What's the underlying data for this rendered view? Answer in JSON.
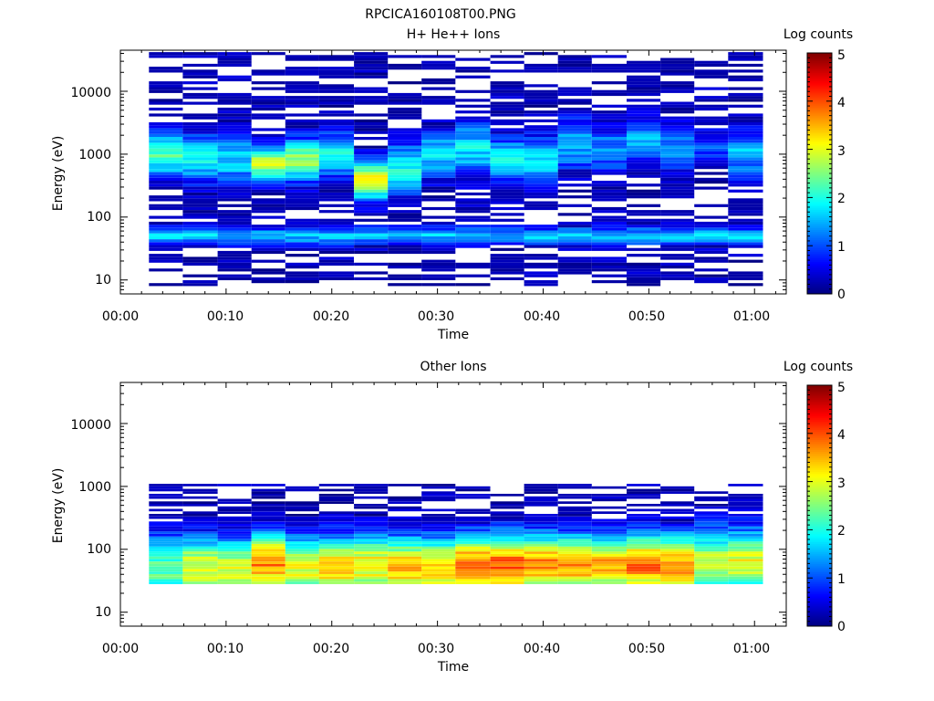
{
  "figure_title": "RPCICA160108T00.PNG",
  "chart_data": [
    {
      "type": "heatmap",
      "title": "H+ He++ Ions",
      "xlabel": "Time",
      "ylabel": "Energy (eV)",
      "colorbar_label": "Log counts",
      "x_ticks": [
        "00:00",
        "00:10",
        "00:20",
        "00:30",
        "00:40",
        "00:50",
        "01:00"
      ],
      "y_ticks": [
        "10",
        "100",
        "1000",
        "10000"
      ],
      "y_scale": "log",
      "ylim": [
        6,
        45000
      ],
      "xlim_minutes": [
        0,
        63
      ],
      "colorbar_ticks": [
        "0",
        "1",
        "2",
        "3",
        "4",
        "5"
      ],
      "clim": [
        0,
        5
      ],
      "colormap": [
        "#00007f",
        "#0000ff",
        "#007fff",
        "#00ffff",
        "#7fff7f",
        "#ffff00",
        "#ff7f00",
        "#ff0000",
        "#7f0000"
      ],
      "time_bins_minutes": [
        [
          2.7,
          5.9
        ],
        [
          5.9,
          9.2
        ],
        [
          9.2,
          12.4
        ],
        [
          12.4,
          15.6
        ],
        [
          15.6,
          18.8
        ],
        [
          18.8,
          22.1
        ],
        [
          22.1,
          25.3
        ],
        [
          25.3,
          28.5
        ],
        [
          28.5,
          31.7
        ],
        [
          31.7,
          35.0
        ],
        [
          35.0,
          38.2
        ],
        [
          38.2,
          41.4
        ],
        [
          41.4,
          44.6
        ],
        [
          44.6,
          47.9
        ],
        [
          47.9,
          51.1
        ],
        [
          51.1,
          54.3
        ],
        [
          54.3,
          57.5
        ],
        [
          57.5,
          60.8
        ]
      ],
      "energy_range_eV": [
        8,
        42000
      ],
      "energy_channels": 80,
      "profiles": [
        {
          "center_eV": 1000,
          "peak": 2.4,
          "width_decades": 0.35
        },
        {
          "center_eV": 900,
          "peak": 1.9,
          "width_decades": 0.4
        },
        {
          "center_eV": 800,
          "peak": 1.6,
          "width_decades": 0.45
        },
        {
          "center_eV": 700,
          "peak": 2.8,
          "width_decades": 0.3
        },
        {
          "center_eV": 800,
          "peak": 2.6,
          "width_decades": 0.35
        },
        {
          "center_eV": 1000,
          "peak": 1.8,
          "width_decades": 0.4
        },
        {
          "center_eV": 400,
          "peak": 3.0,
          "width_decades": 0.35
        },
        {
          "center_eV": 600,
          "peak": 2.0,
          "width_decades": 0.4
        },
        {
          "center_eV": 1000,
          "peak": 1.7,
          "width_decades": 0.4
        },
        {
          "center_eV": 1200,
          "peak": 1.8,
          "width_decades": 0.45
        },
        {
          "center_eV": 800,
          "peak": 2.1,
          "width_decades": 0.35
        },
        {
          "center_eV": 800,
          "peak": 1.7,
          "width_decades": 0.4
        },
        {
          "center_eV": 1500,
          "peak": 1.5,
          "width_decades": 0.45
        },
        {
          "center_eV": 1200,
          "peak": 1.3,
          "width_decades": 0.4
        },
        {
          "center_eV": 1600,
          "peak": 1.7,
          "width_decades": 0.35
        },
        {
          "center_eV": 1200,
          "peak": 1.4,
          "width_decades": 0.4
        },
        {
          "center_eV": 1200,
          "peak": 1.0,
          "width_decades": 0.35
        },
        {
          "center_eV": 1000,
          "peak": 1.5,
          "width_decades": 0.4
        }
      ],
      "low_energy_band": {
        "center_eV": 50,
        "peak": 1.6,
        "width_decades": 0.15
      }
    },
    {
      "type": "heatmap",
      "title": "Other Ions",
      "xlabel": "Time",
      "ylabel": "Energy (eV)",
      "colorbar_label": "Log counts",
      "x_ticks": [
        "00:00",
        "00:10",
        "00:20",
        "00:30",
        "00:40",
        "00:50",
        "01:00"
      ],
      "y_ticks": [
        "10",
        "100",
        "1000",
        "10000"
      ],
      "y_scale": "log",
      "ylim": [
        6,
        45000
      ],
      "xlim_minutes": [
        0,
        63
      ],
      "colorbar_ticks": [
        "0",
        "1",
        "2",
        "3",
        "4",
        "5"
      ],
      "clim": [
        0,
        5
      ],
      "colormap": [
        "#00007f",
        "#0000ff",
        "#007fff",
        "#00ffff",
        "#7fff7f",
        "#ffff00",
        "#ff7f00",
        "#ff0000",
        "#7f0000"
      ],
      "time_bins_minutes": [
        [
          2.7,
          5.9
        ],
        [
          5.9,
          9.2
        ],
        [
          9.2,
          12.4
        ],
        [
          12.4,
          15.6
        ],
        [
          15.6,
          18.8
        ],
        [
          18.8,
          22.1
        ],
        [
          22.1,
          25.3
        ],
        [
          25.3,
          28.5
        ],
        [
          28.5,
          31.7
        ],
        [
          31.7,
          35.0
        ],
        [
          35.0,
          38.2
        ],
        [
          38.2,
          41.4
        ],
        [
          41.4,
          44.6
        ],
        [
          44.6,
          47.9
        ],
        [
          47.9,
          51.1
        ],
        [
          51.1,
          54.3
        ],
        [
          54.3,
          57.5
        ],
        [
          57.5,
          60.8
        ]
      ],
      "energy_range_eV": [
        28,
        1100
      ],
      "energy_channels": 40,
      "profiles": [
        {
          "center_eV": 50,
          "peak": 2.4,
          "width_decades": 0.55
        },
        {
          "center_eV": 50,
          "peak": 3.1,
          "width_decades": 0.5
        },
        {
          "center_eV": 50,
          "peak": 3.0,
          "width_decades": 0.5
        },
        {
          "center_eV": 60,
          "peak": 3.7,
          "width_decades": 0.5
        },
        {
          "center_eV": 50,
          "peak": 3.0,
          "width_decades": 0.5
        },
        {
          "center_eV": 50,
          "peak": 3.4,
          "width_decades": 0.5
        },
        {
          "center_eV": 55,
          "peak": 3.2,
          "width_decades": 0.5
        },
        {
          "center_eV": 50,
          "peak": 3.5,
          "width_decades": 0.5
        },
        {
          "center_eV": 50,
          "peak": 3.4,
          "width_decades": 0.5
        },
        {
          "center_eV": 55,
          "peak": 3.9,
          "width_decades": 0.5
        },
        {
          "center_eV": 55,
          "peak": 4.0,
          "width_decades": 0.5
        },
        {
          "center_eV": 55,
          "peak": 3.8,
          "width_decades": 0.5
        },
        {
          "center_eV": 55,
          "peak": 3.6,
          "width_decades": 0.5
        },
        {
          "center_eV": 55,
          "peak": 3.6,
          "width_decades": 0.5
        },
        {
          "center_eV": 55,
          "peak": 3.8,
          "width_decades": 0.5
        },
        {
          "center_eV": 55,
          "peak": 3.7,
          "width_decades": 0.5
        },
        {
          "center_eV": 60,
          "peak": 2.8,
          "width_decades": 0.55
        },
        {
          "center_eV": 60,
          "peak": 3.0,
          "width_decades": 0.55
        }
      ]
    }
  ]
}
